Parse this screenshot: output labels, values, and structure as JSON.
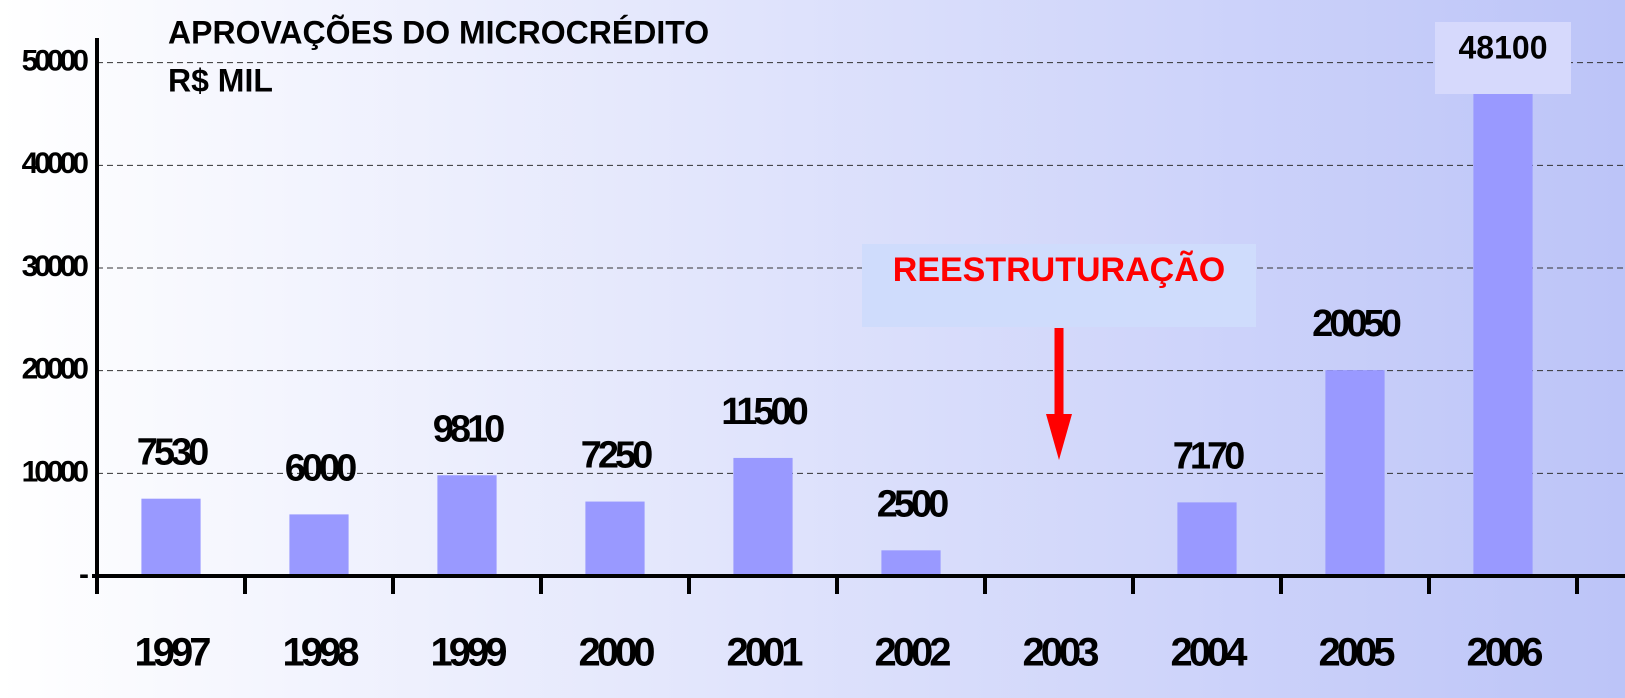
{
  "chart_data": {
    "type": "bar",
    "title": [
      "APROVAÇÕES DO MICROCRÉDITO",
      "R$ MIL"
    ],
    "categories": [
      "1997",
      "1998",
      "1999",
      "2000",
      "2001",
      "2002",
      "2003",
      "2004",
      "2005",
      "2006"
    ],
    "values": [
      7530,
      6000,
      9810,
      7250,
      11500,
      2500,
      null,
      7170,
      20050,
      48100
    ],
    "color": "#9999ff",
    "ylim": [
      0,
      52400
    ],
    "yticks": [
      {
        "value": 0,
        "label": "-"
      },
      10000,
      20000,
      30000,
      40000,
      50000
    ],
    "grid": true,
    "annotation": {
      "text": "REESTRUTURAÇÃO",
      "category": 6
    }
  }
}
